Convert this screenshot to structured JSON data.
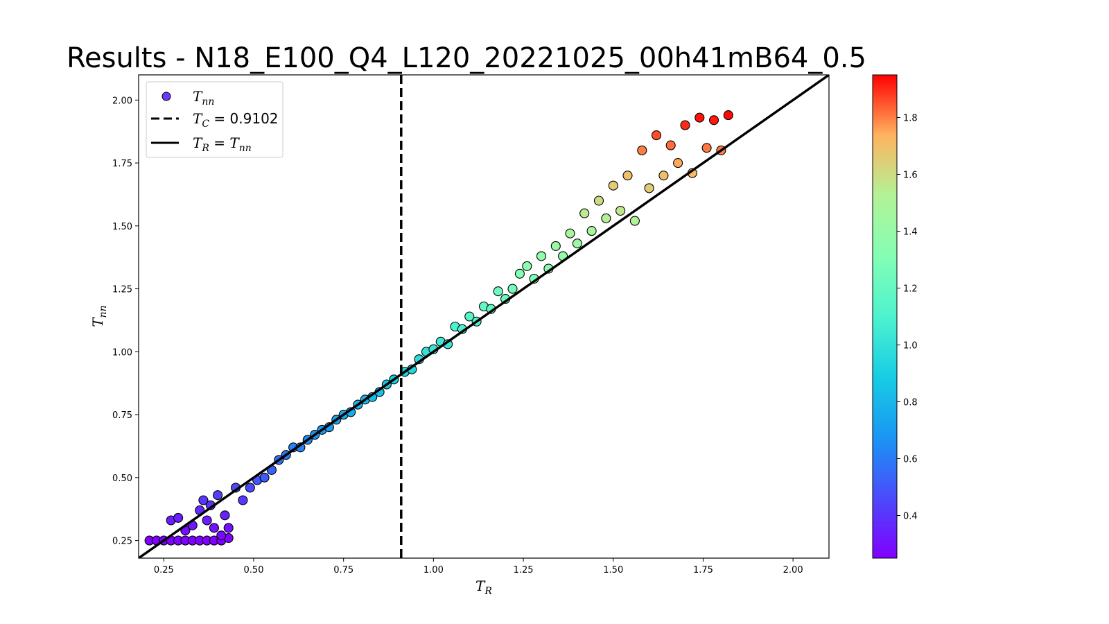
{
  "chart_data": {
    "type": "scatter",
    "title": "Results - N18_E100_Q4_L120_20221025_00h41mB64_0.5",
    "xlabel": "T_R",
    "ylabel": "T_nn",
    "xlim": [
      0.18,
      2.1
    ],
    "ylim": [
      0.18,
      2.1
    ],
    "x_ticks": [
      "0.25",
      "0.50",
      "0.75",
      "1.00",
      "1.25",
      "1.50",
      "1.75",
      "2.00"
    ],
    "y_ticks": [
      "0.25",
      "0.50",
      "0.75",
      "1.00",
      "1.25",
      "1.50",
      "1.75",
      "2.00"
    ],
    "tick_values": [
      0.25,
      0.5,
      0.75,
      1.0,
      1.25,
      1.5,
      1.75,
      2.0
    ],
    "colorbar": {
      "colormap": "rainbow",
      "range": [
        0.25,
        1.95
      ],
      "ticks": [
        "0.4",
        "0.6",
        "0.8",
        "1.0",
        "1.2",
        "1.4",
        "1.6",
        "1.8"
      ],
      "tick_values": [
        0.4,
        0.6,
        0.8,
        1.0,
        1.2,
        1.4,
        1.6,
        1.8
      ]
    },
    "legend": {
      "placement": "top-left",
      "entries": [
        {
          "symbol": "marker",
          "label": "T_nn"
        },
        {
          "symbol": "dashed-line",
          "label": "T_C = 0.9102"
        },
        {
          "symbol": "solid-line",
          "label": "T_R = T_nn"
        }
      ]
    },
    "critical_temperature": 0.9102,
    "identity_line": true,
    "grid": false,
    "series": [
      {
        "name": "T_nn",
        "points": [
          [
            0.21,
            0.25
          ],
          [
            0.23,
            0.25
          ],
          [
            0.25,
            0.25
          ],
          [
            0.27,
            0.25
          ],
          [
            0.29,
            0.25
          ],
          [
            0.31,
            0.25
          ],
          [
            0.33,
            0.25
          ],
          [
            0.35,
            0.25
          ],
          [
            0.37,
            0.25
          ],
          [
            0.39,
            0.25
          ],
          [
            0.41,
            0.25
          ],
          [
            0.43,
            0.26
          ],
          [
            0.27,
            0.33
          ],
          [
            0.29,
            0.34
          ],
          [
            0.31,
            0.29
          ],
          [
            0.33,
            0.31
          ],
          [
            0.35,
            0.37
          ],
          [
            0.37,
            0.33
          ],
          [
            0.39,
            0.3
          ],
          [
            0.41,
            0.27
          ],
          [
            0.43,
            0.3
          ],
          [
            0.36,
            0.41
          ],
          [
            0.38,
            0.39
          ],
          [
            0.4,
            0.43
          ],
          [
            0.42,
            0.35
          ],
          [
            0.45,
            0.46
          ],
          [
            0.47,
            0.41
          ],
          [
            0.49,
            0.46
          ],
          [
            0.51,
            0.49
          ],
          [
            0.53,
            0.5
          ],
          [
            0.55,
            0.53
          ],
          [
            0.57,
            0.57
          ],
          [
            0.59,
            0.59
          ],
          [
            0.61,
            0.62
          ],
          [
            0.63,
            0.62
          ],
          [
            0.65,
            0.65
          ],
          [
            0.67,
            0.67
          ],
          [
            0.69,
            0.69
          ],
          [
            0.71,
            0.7
          ],
          [
            0.73,
            0.73
          ],
          [
            0.75,
            0.75
          ],
          [
            0.77,
            0.76
          ],
          [
            0.79,
            0.79
          ],
          [
            0.81,
            0.81
          ],
          [
            0.83,
            0.82
          ],
          [
            0.85,
            0.84
          ],
          [
            0.87,
            0.87
          ],
          [
            0.89,
            0.89
          ],
          [
            0.92,
            0.92
          ],
          [
            0.94,
            0.93
          ],
          [
            0.96,
            0.97
          ],
          [
            0.98,
            1.0
          ],
          [
            1.0,
            1.01
          ],
          [
            1.02,
            1.04
          ],
          [
            1.04,
            1.03
          ],
          [
            1.06,
            1.1
          ],
          [
            1.08,
            1.09
          ],
          [
            1.1,
            1.14
          ],
          [
            1.12,
            1.12
          ],
          [
            1.14,
            1.18
          ],
          [
            1.16,
            1.17
          ],
          [
            1.18,
            1.24
          ],
          [
            1.2,
            1.21
          ],
          [
            1.22,
            1.25
          ],
          [
            1.24,
            1.31
          ],
          [
            1.26,
            1.34
          ],
          [
            1.28,
            1.29
          ],
          [
            1.3,
            1.38
          ],
          [
            1.32,
            1.33
          ],
          [
            1.34,
            1.42
          ],
          [
            1.36,
            1.38
          ],
          [
            1.38,
            1.47
          ],
          [
            1.4,
            1.43
          ],
          [
            1.42,
            1.55
          ],
          [
            1.44,
            1.48
          ],
          [
            1.46,
            1.6
          ],
          [
            1.48,
            1.53
          ],
          [
            1.5,
            1.66
          ],
          [
            1.52,
            1.56
          ],
          [
            1.54,
            1.7
          ],
          [
            1.56,
            1.52
          ],
          [
            1.58,
            1.8
          ],
          [
            1.6,
            1.65
          ],
          [
            1.62,
            1.86
          ],
          [
            1.64,
            1.7
          ],
          [
            1.66,
            1.82
          ],
          [
            1.68,
            1.75
          ],
          [
            1.7,
            1.9
          ],
          [
            1.72,
            1.71
          ],
          [
            1.74,
            1.93
          ],
          [
            1.76,
            1.81
          ],
          [
            1.78,
            1.92
          ],
          [
            1.8,
            1.8
          ],
          [
            1.82,
            1.94
          ]
        ]
      }
    ]
  }
}
